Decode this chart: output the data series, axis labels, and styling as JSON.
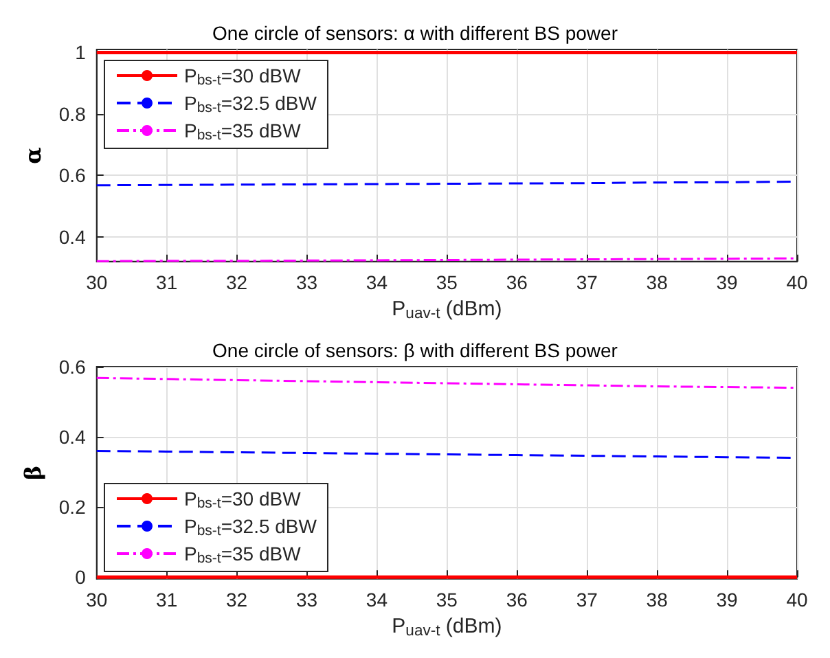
{
  "chart_data": [
    {
      "type": "line",
      "title": "One circle of sensors: α with different BS power",
      "xlabel": "P$_{uav-t}$ (dBm)",
      "ylabel": "α",
      "x": [
        30,
        31,
        32,
        33,
        34,
        35,
        36,
        37,
        38,
        39,
        40
      ],
      "xlim": [
        30,
        40
      ],
      "xticks": [
        30,
        31,
        32,
        33,
        34,
        35,
        36,
        37,
        38,
        39,
        40
      ],
      "ylim": [
        0.32,
        1.01
      ],
      "yticks": [
        0.4,
        0.6,
        0.8,
        1
      ],
      "grid": true,
      "legend": "top left",
      "marker": "none",
      "series": [
        {
          "name": "P$_{bs-t}$=30 dBW",
          "color": "#ff0000",
          "line_style": "solid",
          "values": [
            1,
            1,
            1,
            1,
            1,
            1,
            1,
            1,
            1,
            1,
            1
          ]
        },
        {
          "name": "P$_{bs-t}$=32.5 dBW",
          "color": "#0000ff",
          "line_style": "dashed",
          "values": [
            0.568,
            0.569,
            0.57,
            0.571,
            0.572,
            0.573,
            0.574,
            0.575,
            0.577,
            0.578,
            0.58
          ]
        },
        {
          "name": "P$_{bs-t}$=35 dBW",
          "color": "#ff00ff",
          "line_style": "dashdot",
          "values": [
            0.321,
            0.322,
            0.322,
            0.323,
            0.324,
            0.325,
            0.326,
            0.327,
            0.328,
            0.329,
            0.33
          ]
        }
      ]
    },
    {
      "type": "line",
      "title": "One circle of sensors: β with different BS power",
      "xlabel": "P$_{uav-t}$ (dBm)",
      "ylabel": "β",
      "x": [
        30,
        31,
        32,
        33,
        34,
        35,
        36,
        37,
        38,
        39,
        40
      ],
      "xlim": [
        30,
        40
      ],
      "xticks": [
        30,
        31,
        32,
        33,
        34,
        35,
        36,
        37,
        38,
        39,
        40
      ],
      "ylim": [
        -0.005,
        0.6
      ],
      "yticks": [
        0,
        0.2,
        0.4,
        0.6
      ],
      "grid": true,
      "legend": "bottom left",
      "marker": "none",
      "series": [
        {
          "name": "P$_{bs-t}$=30 dBW",
          "color": "#ff0000",
          "line_style": "solid",
          "values": [
            0,
            0,
            0,
            0,
            0,
            0,
            0,
            0,
            0,
            0,
            0
          ]
        },
        {
          "name": "P$_{bs-t}$=32.5 dBW",
          "color": "#0000ff",
          "line_style": "dashed",
          "values": [
            0.36,
            0.358,
            0.356,
            0.354,
            0.352,
            0.35,
            0.348,
            0.346,
            0.344,
            0.342,
            0.34
          ]
        },
        {
          "name": "P$_{bs-t}$=35 dBW",
          "color": "#ff00ff",
          "line_style": "dashdot",
          "values": [
            0.568,
            0.565,
            0.562,
            0.559,
            0.556,
            0.553,
            0.55,
            0.547,
            0.544,
            0.542,
            0.54
          ]
        }
      ]
    }
  ]
}
